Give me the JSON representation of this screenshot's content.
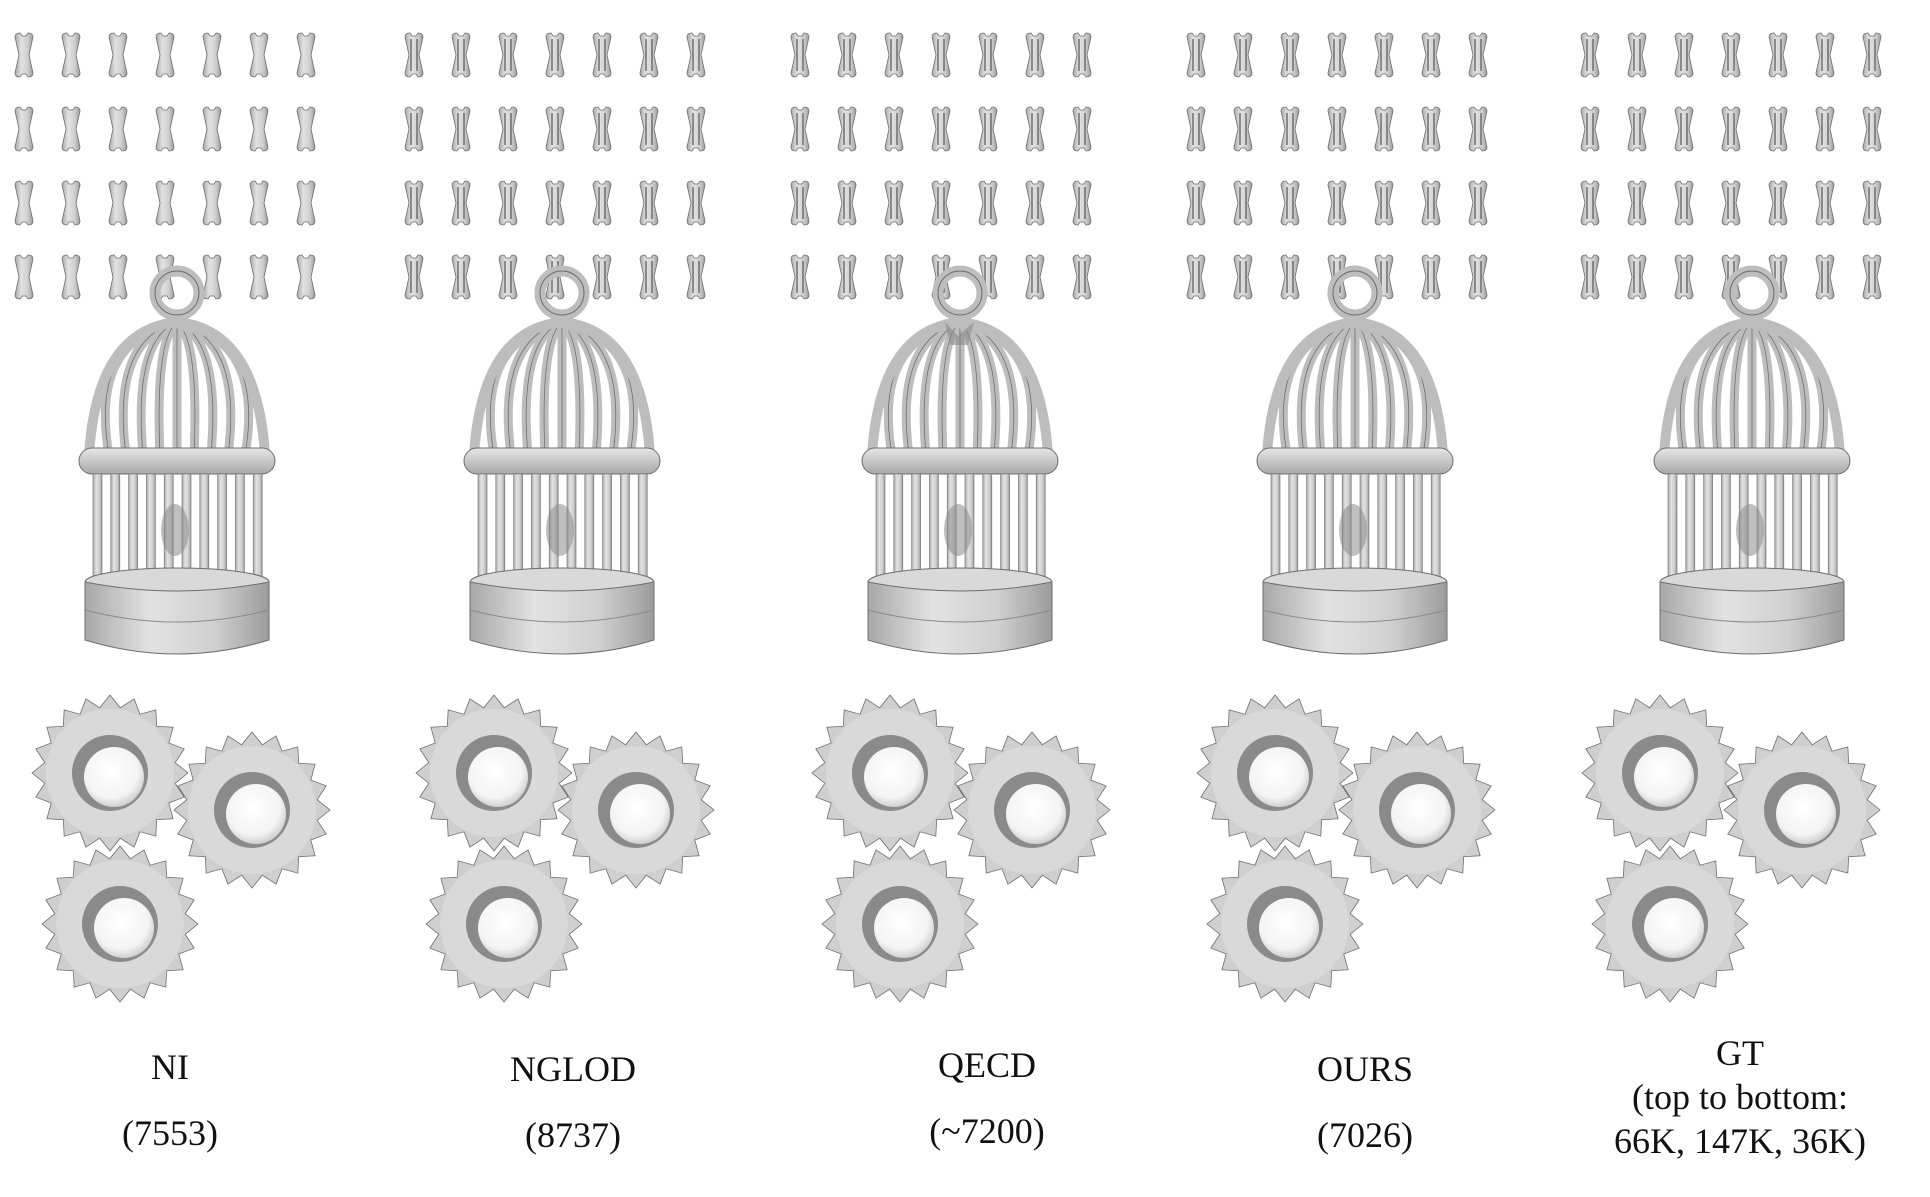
{
  "columns": [
    {
      "key": "ni",
      "method": "NI",
      "count": "(7553)"
    },
    {
      "key": "nglod",
      "method": "NGLOD",
      "count": "(8737)"
    },
    {
      "key": "qecd",
      "method": "QECD",
      "count": "(~7200)"
    },
    {
      "key": "ours",
      "method": "OURS",
      "count": "(7026)"
    },
    {
      "key": "gt",
      "method": "GT",
      "note_line1": "(top to bottom:",
      "note_line2": "66K, 147K, 36K)"
    }
  ],
  "colors": {
    "mesh_light": "#d9d9d9",
    "mesh_mid": "#bdbdbd",
    "mesh_dark": "#8a8a8a",
    "mesh_edge": "#6e6e6e",
    "text": "#111111"
  },
  "rows": [
    "bone-grid",
    "birdcage",
    "gears"
  ]
}
